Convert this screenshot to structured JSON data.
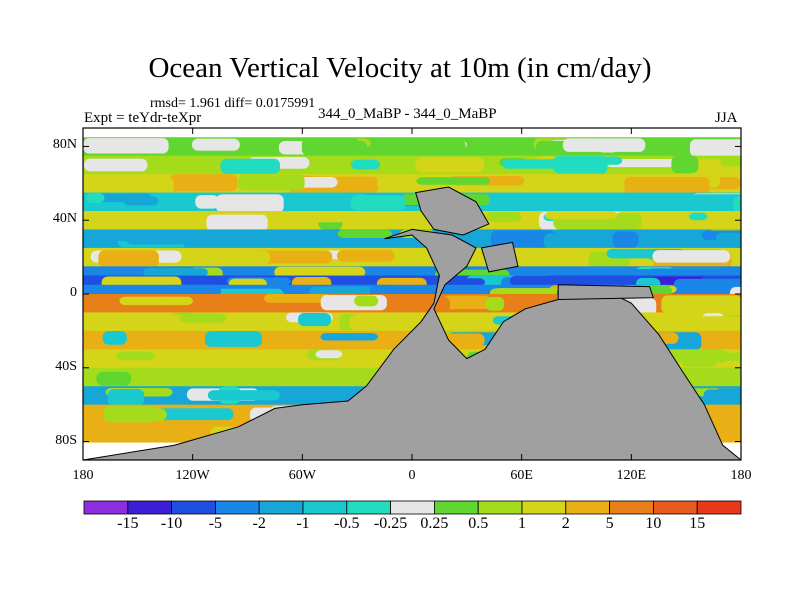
{
  "chart_data": {
    "type": "heatmap",
    "title": "Ocean Vertical Velocity at 10m (in cm/day)",
    "stats_text": "rmsd= 1.961 diff= 0.0175991",
    "experiment_label": "Expt = teYdr-teXpr",
    "cases_label": "344_0_MaBP - 344_0_MaBP",
    "season": "JJA",
    "xlim": [
      -180,
      180
    ],
    "ylim": [
      -90,
      90
    ],
    "x_ticks": [
      {
        "value": -180,
        "label": "180"
      },
      {
        "value": -120,
        "label": "120W"
      },
      {
        "value": -60,
        "label": "60W"
      },
      {
        "value": 0,
        "label": "0"
      },
      {
        "value": 60,
        "label": "60E"
      },
      {
        "value": 120,
        "label": "120E"
      },
      {
        "value": 180,
        "label": "180"
      }
    ],
    "y_ticks": [
      {
        "value": 80,
        "label": "80N"
      },
      {
        "value": 40,
        "label": "40N"
      },
      {
        "value": 0,
        "label": "0"
      },
      {
        "value": -40,
        "label": "40S"
      },
      {
        "value": -80,
        "label": "80S"
      }
    ],
    "contour_levels": [
      "-15",
      "-10",
      "-5",
      "-2",
      "-1",
      "-0.5",
      "-0.25",
      "0.25",
      "0.5",
      "1",
      "2",
      "5",
      "10",
      "15"
    ],
    "colorbar_colors": [
      "#8c2ee0",
      "#3a1fd6",
      "#1f4fe0",
      "#1a86e8",
      "#16a6d8",
      "#1ac8d0",
      "#22dcc0",
      "#e6e6e6",
      "#60d630",
      "#a4dc1c",
      "#d4d418",
      "#e8b014",
      "#e8801a",
      "#e85a1e",
      "#e83a1a"
    ],
    "land_color": "#a0a0a0",
    "bands": [
      {
        "lat": 80,
        "value": 0.4
      },
      {
        "lat": 70,
        "value": 0.7
      },
      {
        "lat": 60,
        "value": 1.5
      },
      {
        "lat": 50,
        "value": -0.8
      },
      {
        "lat": 40,
        "value": 1.2
      },
      {
        "lat": 30,
        "value": -1.5
      },
      {
        "lat": 20,
        "value": 1.8
      },
      {
        "lat": 10,
        "value": -3.0
      },
      {
        "lat": 5,
        "value": -6.0
      },
      {
        "lat": 0,
        "value": -3.5
      },
      {
        "lat": -5,
        "value": 5.0
      },
      {
        "lat": -15,
        "value": 1.5
      },
      {
        "lat": -25,
        "value": 2.5
      },
      {
        "lat": -35,
        "value": 1.0
      },
      {
        "lat": -45,
        "value": 0.6
      },
      {
        "lat": -55,
        "value": -1.2
      },
      {
        "lat": -65,
        "value": 2.0
      },
      {
        "lat": -75,
        "value": 3.5
      }
    ],
    "land_polygons": [
      {
        "name": "central-landmass",
        "points": [
          [
            -15,
            30
          ],
          [
            0,
            32
          ],
          [
            8,
            25
          ],
          [
            15,
            10
          ],
          [
            12,
            -5
          ],
          [
            5,
            -15
          ],
          [
            -10,
            -30
          ],
          [
            -25,
            -50
          ],
          [
            -35,
            -58
          ],
          [
            -60,
            -60
          ],
          [
            -75,
            -62
          ],
          [
            -95,
            -72
          ],
          [
            -130,
            -82
          ],
          [
            -180,
            -90
          ],
          [
            180,
            -90
          ],
          [
            170,
            -82
          ],
          [
            160,
            -60
          ],
          [
            148,
            -42
          ],
          [
            135,
            -22
          ],
          [
            120,
            -5
          ],
          [
            110,
            0
          ],
          [
            95,
            0
          ],
          [
            80,
            -3
          ],
          [
            62,
            -8
          ],
          [
            50,
            -15
          ],
          [
            40,
            -30
          ],
          [
            30,
            -35
          ],
          [
            20,
            -25
          ],
          [
            12,
            -8
          ],
          [
            18,
            5
          ],
          [
            30,
            15
          ],
          [
            35,
            25
          ],
          [
            22,
            32
          ],
          [
            0,
            35
          ]
        ]
      },
      {
        "name": "northern-landmass",
        "points": [
          [
            2,
            55
          ],
          [
            20,
            58
          ],
          [
            35,
            50
          ],
          [
            42,
            38
          ],
          [
            28,
            32
          ],
          [
            12,
            35
          ],
          [
            5,
            45
          ]
        ]
      },
      {
        "name": "small-island",
        "points": [
          [
            38,
            25
          ],
          [
            55,
            28
          ],
          [
            58,
            15
          ],
          [
            42,
            12
          ]
        ]
      },
      {
        "name": "equatorial-island",
        "points": [
          [
            80,
            5
          ],
          [
            130,
            4
          ],
          [
            132,
            -2
          ],
          [
            80,
            -3
          ]
        ]
      }
    ]
  }
}
